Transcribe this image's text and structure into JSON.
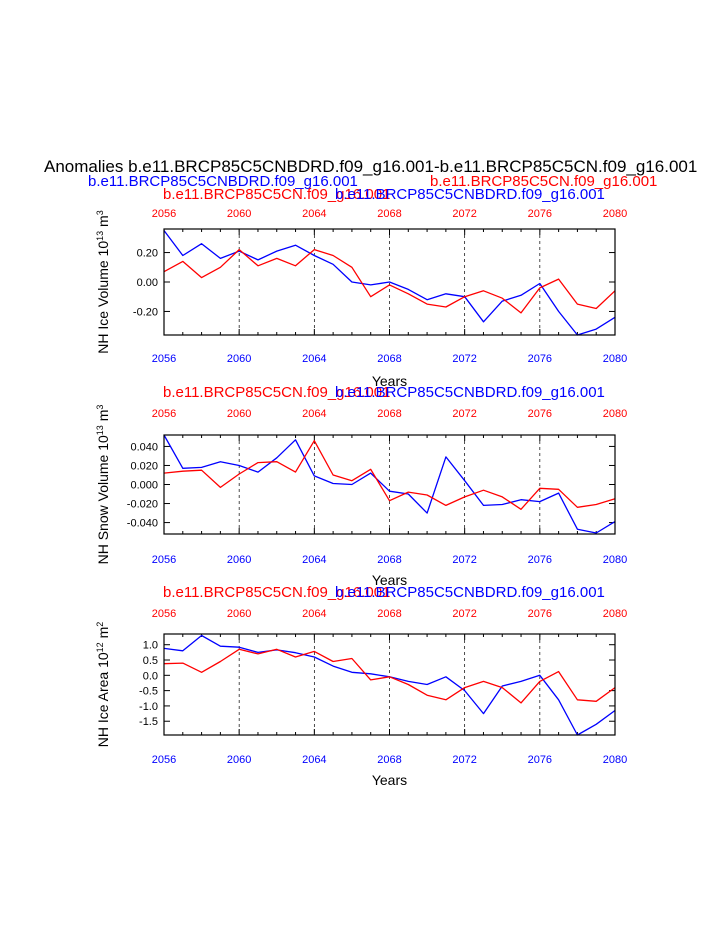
{
  "page": {
    "title": "Anomalies b.e11.BRCP85C5CNBDRD.f09_g16.001-b.e11.BRCP85C5CN.f09_g16.001",
    "legend_blue": "b.e11.BRCP85C5CNBDRD.f09_g16.001",
    "legend_red": "b.e11.BRCP85C5CN.f09_g16.001",
    "colors": {
      "blue": "#0000ff",
      "red": "#ff0000",
      "black": "#000000"
    }
  },
  "chart_data": [
    {
      "type": "line",
      "id": "ice-volume",
      "title_red": "b.e11.BRCP85C5CN.f09_g16.001",
      "title_blue": "b.e11.BRCP85C5CNBDRD.f09_g16.001",
      "ylabel": "NH Ice Volume 10",
      "ylabel_exp": "13",
      "ylabel_unit": " m",
      "ylabel_unit_exp": "3",
      "xlabel": "Years",
      "xlim": [
        2056,
        2080
      ],
      "ylim": [
        -0.36,
        0.36
      ],
      "yticks": [
        -0.2,
        0.0,
        0.2
      ],
      "ytick_labels": [
        "-0.20",
        "0.00",
        "0.20"
      ],
      "xticks": [
        2056,
        2060,
        2064,
        2068,
        2072,
        2076,
        2080
      ],
      "xtick_labels": [
        "2056",
        "2060",
        "2064",
        "2068",
        "2072",
        "2076",
        "2080"
      ],
      "x": [
        2056,
        2057,
        2058,
        2059,
        2060,
        2061,
        2062,
        2063,
        2064,
        2065,
        2066,
        2067,
        2068,
        2069,
        2070,
        2071,
        2072,
        2073,
        2074,
        2075,
        2076,
        2077,
        2078,
        2079,
        2080
      ],
      "series": [
        {
          "name": "b.e11.BRCP85C5CNBDRD.f09_g16.001",
          "color": "blue",
          "values": [
            0.35,
            0.18,
            0.26,
            0.16,
            0.21,
            0.15,
            0.21,
            0.25,
            0.18,
            0.12,
            0.0,
            -0.02,
            0.0,
            -0.05,
            -0.12,
            -0.08,
            -0.1,
            -0.27,
            -0.13,
            -0.09,
            -0.01,
            -0.2,
            -0.36,
            -0.32,
            -0.24
          ]
        },
        {
          "name": "b.e11.BRCP85C5CN.f09_g16.001",
          "color": "red",
          "values": [
            0.07,
            0.14,
            0.03,
            0.1,
            0.22,
            0.11,
            0.16,
            0.11,
            0.22,
            0.18,
            0.1,
            -0.1,
            -0.02,
            -0.08,
            -0.15,
            -0.17,
            -0.1,
            -0.06,
            -0.11,
            -0.21,
            -0.04,
            0.02,
            -0.15,
            -0.18,
            -0.06
          ]
        }
      ]
    },
    {
      "type": "line",
      "id": "snow-volume",
      "title_red": "b.e11.BRCP85C5CN.f09_g16.001",
      "title_blue": "b.e11.BRCP85C5CNBDRD.f09_g16.001",
      "ylabel": "NH Snow Volume 10",
      "ylabel_exp": "13",
      "ylabel_unit": " m",
      "ylabel_unit_exp": "3",
      "xlabel": "Years",
      "xlim": [
        2056,
        2080
      ],
      "ylim": [
        -0.052,
        0.052
      ],
      "yticks": [
        -0.04,
        -0.02,
        0.0,
        0.02,
        0.04
      ],
      "ytick_labels": [
        "-0.040",
        "-0.020",
        "0.000",
        "0.020",
        "0.040"
      ],
      "xticks": [
        2056,
        2060,
        2064,
        2068,
        2072,
        2076,
        2080
      ],
      "xtick_labels": [
        "2056",
        "2060",
        "2064",
        "2068",
        "2072",
        "2076",
        "2080"
      ],
      "x": [
        2056,
        2057,
        2058,
        2059,
        2060,
        2061,
        2062,
        2063,
        2064,
        2065,
        2066,
        2067,
        2068,
        2069,
        2070,
        2071,
        2072,
        2073,
        2074,
        2075,
        2076,
        2077,
        2078,
        2079,
        2080
      ],
      "series": [
        {
          "name": "b.e11.BRCP85C5CNBDRD.f09_g16.001",
          "color": "blue",
          "values": [
            0.052,
            0.017,
            0.018,
            0.024,
            0.02,
            0.013,
            0.028,
            0.047,
            0.009,
            0.001,
            0.0,
            0.012,
            -0.007,
            -0.01,
            -0.03,
            0.029,
            0.004,
            -0.022,
            -0.021,
            -0.016,
            -0.018,
            -0.009,
            -0.047,
            -0.051,
            -0.039
          ]
        },
        {
          "name": "b.e11.BRCP85C5CN.f09_g16.001",
          "color": "red",
          "values": [
            0.012,
            0.014,
            0.015,
            -0.003,
            0.011,
            0.023,
            0.024,
            0.013,
            0.046,
            0.01,
            0.004,
            0.016,
            -0.017,
            -0.008,
            -0.011,
            -0.022,
            -0.013,
            -0.006,
            -0.013,
            -0.026,
            -0.004,
            -0.005,
            -0.024,
            -0.021,
            -0.015
          ]
        }
      ]
    },
    {
      "type": "line",
      "id": "ice-area",
      "title_red": "b.e11.BRCP85C5CN.f09_g16.001",
      "title_blue": "b.e11.BRCP85C5CNBDRD.f09_g16.001",
      "ylabel": "NH Ice Area 10",
      "ylabel_exp": "12",
      "ylabel_unit": " m",
      "ylabel_unit_exp": "2",
      "xlabel": "Years",
      "xlim": [
        2056,
        2080
      ],
      "ylim": [
        -1.95,
        1.35
      ],
      "yticks": [
        -1.5,
        -1.0,
        -0.5,
        0.0,
        0.5,
        1.0
      ],
      "ytick_labels": [
        "-1.5",
        "-1.0",
        "-0.5",
        "0.0",
        "0.5",
        "1.0"
      ],
      "xticks": [
        2056,
        2060,
        2064,
        2068,
        2072,
        2076,
        2080
      ],
      "xtick_labels": [
        "2056",
        "2060",
        "2064",
        "2068",
        "2072",
        "2076",
        "2080"
      ],
      "x": [
        2056,
        2057,
        2058,
        2059,
        2060,
        2061,
        2062,
        2063,
        2064,
        2065,
        2066,
        2067,
        2068,
        2069,
        2070,
        2071,
        2072,
        2073,
        2074,
        2075,
        2076,
        2077,
        2078,
        2079,
        2080
      ],
      "series": [
        {
          "name": "b.e11.BRCP85C5CNBDRD.f09_g16.001",
          "color": "blue",
          "values": [
            0.88,
            0.8,
            1.3,
            0.95,
            0.92,
            0.75,
            0.83,
            0.74,
            0.6,
            0.3,
            0.1,
            0.05,
            -0.05,
            -0.2,
            -0.3,
            -0.05,
            -0.5,
            -1.25,
            -0.35,
            -0.2,
            0.0,
            -0.8,
            -1.95,
            -1.6,
            -1.15
          ]
        },
        {
          "name": "b.e11.BRCP85C5CN.f09_g16.001",
          "color": "red",
          "values": [
            0.38,
            0.4,
            0.1,
            0.45,
            0.85,
            0.7,
            0.85,
            0.6,
            0.78,
            0.45,
            0.55,
            -0.15,
            -0.05,
            -0.3,
            -0.65,
            -0.8,
            -0.4,
            -0.2,
            -0.4,
            -0.9,
            -0.2,
            0.12,
            -0.8,
            -0.85,
            -0.4
          ]
        }
      ]
    }
  ]
}
